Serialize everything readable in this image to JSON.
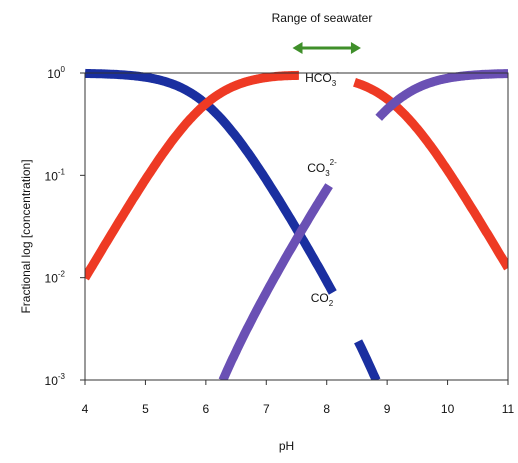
{
  "chart_data": {
    "type": "line",
    "title": "",
    "xlabel": "pH",
    "ylabel": "Fractional log [concentration]",
    "xlim": [
      4,
      11
    ],
    "ylim": [
      0.001,
      1
    ],
    "yscale": "log",
    "xticks": [
      "4",
      "5",
      "6",
      "7",
      "8",
      "9",
      "10",
      "11"
    ],
    "yticks": [
      {
        "base": "10",
        "exp": "0"
      },
      {
        "base": "10",
        "exp": "-1"
      },
      {
        "base": "10",
        "exp": "-2"
      },
      {
        "base": "10",
        "exp": "-3"
      }
    ],
    "grid": false,
    "legend": "none",
    "pK1": 6.0,
    "pK2": 9.1,
    "series": [
      {
        "name": "CO2",
        "label": {
          "main": "CO",
          "sub": "2",
          "sup": ""
        },
        "color": "#1a2fa0"
      },
      {
        "name": "HCO3-",
        "label": {
          "main": "HCO",
          "sub": "3",
          "sup": "-"
        },
        "color": "#ee3a24"
      },
      {
        "name": "CO3 2-",
        "label": {
          "main": "CO",
          "sub": "3",
          "sup": "2-"
        },
        "color": "#6a50b4"
      }
    ],
    "annotation": {
      "text": "Range of seawater",
      "x_range": [
        7.5,
        8.5
      ],
      "color": "#3f8f2a"
    }
  }
}
